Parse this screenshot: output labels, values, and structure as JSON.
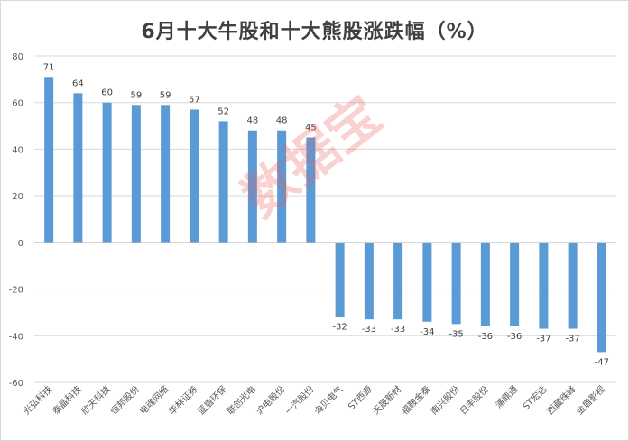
{
  "chart_data": {
    "type": "bar",
    "title": "6月十大牛股和十大熊股涨跌幅（%）",
    "categories": [
      "光弘科技",
      "泰晶科技",
      "欣天科技",
      "恒邦股份",
      "电魂网络",
      "华林证券",
      "蓝盾环保",
      "联创光电",
      "沪电股份",
      "一汽股份",
      "海贝电气",
      "ST西源",
      "天晟新材",
      "福鞍金泰",
      "南兴股份",
      "日丰股份",
      "浦鼎通",
      "ST宏远",
      "西藏珠峰",
      "金盾影视"
    ],
    "values": [
      71,
      64,
      60,
      59,
      59,
      57,
      52,
      48,
      48,
      45,
      -32,
      -33,
      -33,
      -34,
      -35,
      -36,
      -36,
      -37,
      -37,
      -47
    ],
    "data_labels": [
      "71",
      "64",
      "60",
      "59",
      "59",
      "57",
      "52",
      "48",
      "48",
      "45",
      "-32",
      "-33",
      "-33",
      "-34",
      "-35",
      "-36",
      "-36",
      "-37",
      "-37",
      "-47"
    ],
    "ylim": [
      -60,
      80
    ],
    "yticks": [
      80,
      60,
      40,
      20,
      0,
      -20,
      -40,
      -60
    ],
    "grid": true,
    "bar_color": "#5b9bd5",
    "xlabel": "",
    "ylabel": ""
  },
  "watermark": "数据宝"
}
